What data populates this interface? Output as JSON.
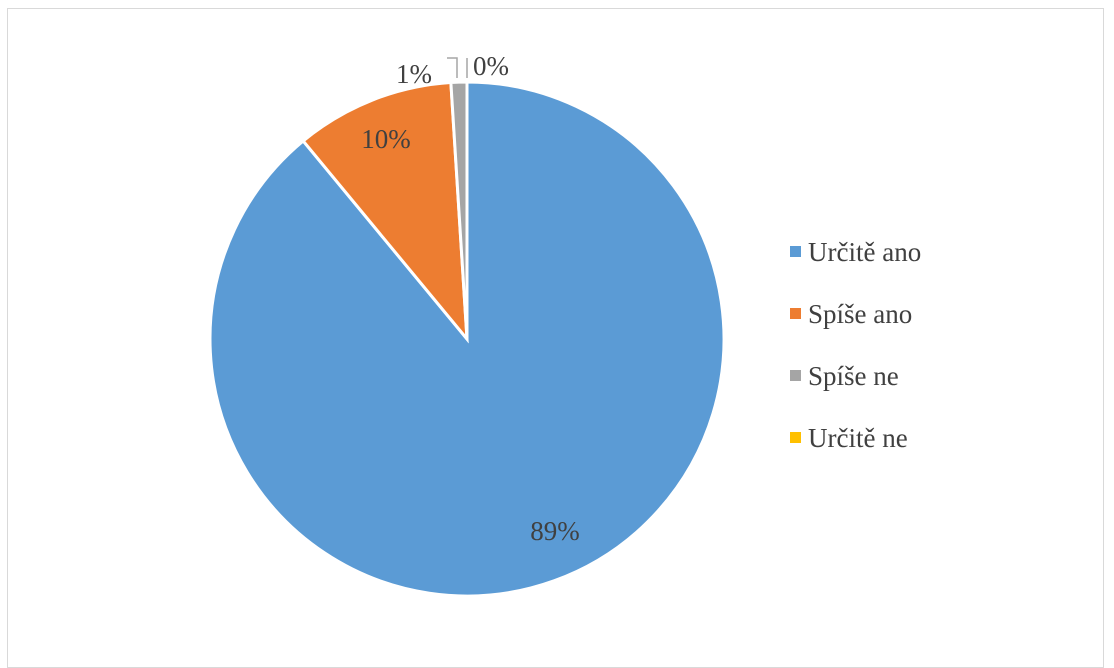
{
  "chart_data": {
    "type": "pie",
    "title": "",
    "categories": [
      "Určitě ano",
      "Spíše ano",
      "Spíše ne",
      "Určitě ne"
    ],
    "values": [
      89,
      10,
      1,
      0
    ],
    "data_labels": [
      "89%",
      "10%",
      "1%",
      "0%"
    ],
    "colors": [
      "#5b9bd5",
      "#ed7d31",
      "#a5a5a5",
      "#ffc000"
    ],
    "legend_position": "right"
  }
}
